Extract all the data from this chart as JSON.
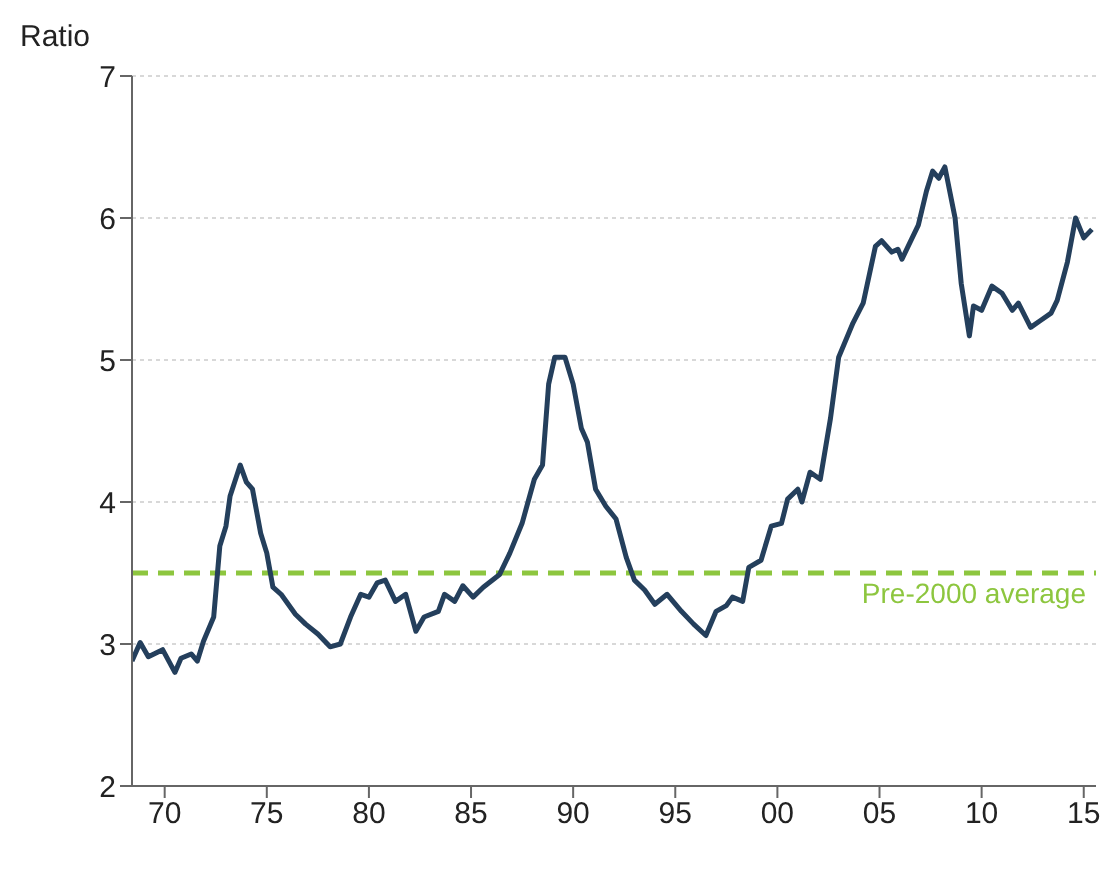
{
  "chart_data": {
    "type": "line",
    "ylabel": "Ratio",
    "x": [
      1968.4,
      1968.8,
      1969.2,
      1969.9,
      1970.5,
      1970.8,
      1971.3,
      1971.6,
      1971.9,
      1972.4,
      1972.7,
      1973.0,
      1973.2,
      1973.7,
      1974.0,
      1974.3,
      1974.7,
      1975.0,
      1975.3,
      1975.7,
      1976.4,
      1976.9,
      1977.5,
      1978.1,
      1978.6,
      1979.1,
      1979.6,
      1980.0,
      1980.4,
      1980.8,
      1981.3,
      1981.8,
      1982.3,
      1982.7,
      1983.4,
      1983.7,
      1984.2,
      1984.6,
      1985.1,
      1985.6,
      1986.4,
      1986.9,
      1987.5,
      1988.1,
      1988.5,
      1988.8,
      1989.1,
      1989.6,
      1990.0,
      1990.4,
      1990.7,
      1991.1,
      1991.6,
      1992.1,
      1992.6,
      1993.0,
      1993.5,
      1994.0,
      1994.6,
      1995.3,
      1995.9,
      1996.5,
      1997.0,
      1997.5,
      1997.8,
      1998.3,
      1998.6,
      1999.2,
      1999.7,
      2000.2,
      2000.5,
      2001.0,
      2001.2,
      2001.6,
      2002.1,
      2002.6,
      2003.0,
      2003.7,
      2004.2,
      2004.8,
      2005.1,
      2005.6,
      2005.9,
      2006.1,
      2006.4,
      2006.9,
      2007.3,
      2007.6,
      2007.9,
      2008.2,
      2008.7,
      2009.0,
      2009.4,
      2009.6,
      2010.0,
      2010.5,
      2011.0,
      2011.5,
      2011.8,
      2012.4,
      2012.9,
      2013.4,
      2013.7,
      2014.2,
      2014.6,
      2015.0,
      2015.4
    ],
    "series": [
      {
        "color": "#243f5c",
        "values": [
          2.88,
          3.01,
          2.91,
          2.96,
          2.8,
          2.9,
          2.93,
          2.88,
          3.02,
          3.19,
          3.69,
          3.83,
          4.04,
          4.26,
          4.14,
          4.09,
          3.78,
          3.64,
          3.4,
          3.35,
          3.21,
          3.14,
          3.07,
          2.98,
          3.0,
          3.19,
          3.35,
          3.33,
          3.43,
          3.45,
          3.3,
          3.35,
          3.09,
          3.19,
          3.23,
          3.35,
          3.3,
          3.41,
          3.33,
          3.4,
          3.49,
          3.64,
          3.85,
          4.16,
          4.26,
          4.83,
          5.02,
          5.02,
          4.83,
          4.52,
          4.42,
          4.09,
          3.97,
          3.88,
          3.61,
          3.45,
          3.38,
          3.28,
          3.35,
          3.23,
          3.14,
          3.06,
          3.23,
          3.27,
          3.33,
          3.3,
          3.54,
          3.59,
          3.83,
          3.85,
          4.02,
          4.09,
          4.0,
          4.21,
          4.16,
          4.59,
          5.02,
          5.26,
          5.4,
          5.8,
          5.84,
          5.76,
          5.78,
          5.71,
          5.8,
          5.95,
          6.19,
          6.33,
          6.28,
          6.36,
          6.0,
          5.54,
          5.17,
          5.38,
          5.35,
          5.52,
          5.47,
          5.35,
          5.4,
          5.23,
          5.28,
          5.33,
          5.42,
          5.69,
          6.0,
          5.86,
          5.92
        ]
      }
    ],
    "xlim": [
      1968.4,
      2015.6
    ],
    "xticks": [
      {
        "value": 1970,
        "label": "70"
      },
      {
        "value": 1975,
        "label": "75"
      },
      {
        "value": 1980,
        "label": "80"
      },
      {
        "value": 1985,
        "label": "85"
      },
      {
        "value": 1990,
        "label": "90"
      },
      {
        "value": 1995,
        "label": "95"
      },
      {
        "value": 2000,
        "label": "00"
      },
      {
        "value": 2005,
        "label": "05"
      },
      {
        "value": 2010,
        "label": "10"
      },
      {
        "value": 2015,
        "label": "15"
      }
    ],
    "ylim": [
      2,
      7
    ],
    "yticks": [
      2,
      3,
      4,
      5,
      6,
      7
    ],
    "grid": "y",
    "marker": "none",
    "line_style": "solid",
    "ref_lines": [
      {
        "axis": "y",
        "value": 3.5,
        "label": "Pre-2000 average",
        "color": "#8dc63f",
        "line_style": "dashed"
      }
    ]
  }
}
